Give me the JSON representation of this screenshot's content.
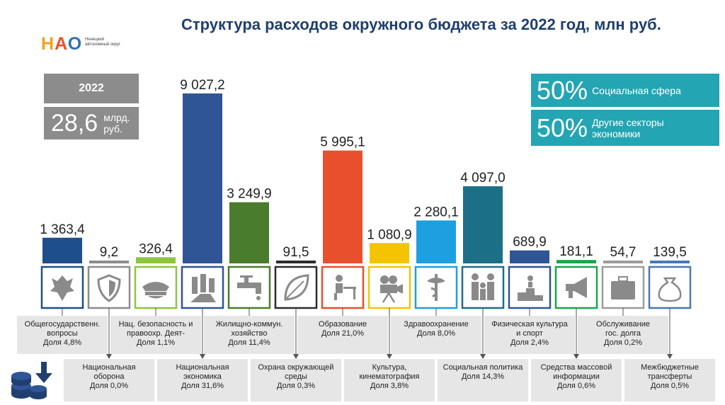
{
  "title": "Структура расходов окружного бюджета за 2022 год, млн руб.",
  "logo": {
    "text": "НАО",
    "subtitle": "Ненецкий автономный округ"
  },
  "summary": {
    "year": "2022",
    "total_value": "28,6",
    "total_unit": "млрд. руб."
  },
  "percent_boxes": [
    {
      "value": "50%",
      "label": "Социальная сфера"
    },
    {
      "value": "50%",
      "label": "Другие секторы экономики"
    }
  ],
  "chart_data": {
    "type": "bar",
    "unit": "млн руб.",
    "categories": [
      "Общегосударственн. вопросы",
      "Национальная оборона",
      "Нац. безопасность и правоохр. Деят-",
      "Национальная экономика",
      "Жилищно-коммун. хозяйство",
      "Охрана окружающей среды",
      "Образование",
      "Культура, кинематография",
      "Здравоохранение",
      "Социальная политика",
      "Физическая культура и спорт",
      "Средства массовой информации",
      "Обслуживание гос. долга",
      "Межбюджетные трансферты"
    ],
    "values": [
      1363.4,
      9.2,
      326.4,
      9027.2,
      3249.9,
      91.5,
      5995.1,
      1080.9,
      2280.1,
      4097.0,
      689.9,
      181.1,
      54.7,
      139.5
    ],
    "value_labels": [
      "1 363,4",
      "9,2",
      "326,4",
      "9 027,2",
      "3 249,9",
      "91,5",
      "5 995,1",
      "1 080,9",
      "2 280,1",
      "4 097,0",
      "689,9",
      "181,1",
      "54,7",
      "139,5"
    ],
    "shares": [
      "Доля 4,8%",
      "Доля 0,0%",
      "Доля 1,1%",
      "Доля 31,6%",
      "Доля 11,4%",
      "Доля 0,3%",
      "Доля 21,0%",
      "Доля 3,8%",
      "Доля 8,0%",
      "Доля 14,3%",
      "Доля 2,4%",
      "Доля 0,6%",
      "Доля 0,2%",
      "Доля 0,5%"
    ],
    "colors": [
      "#1f4e8c",
      "#8c8c8c",
      "#8cc63f",
      "#2f5597",
      "#4a7c2e",
      "#2b2b2b",
      "#e8502d",
      "#f5c400",
      "#1e9fe0",
      "#1b6f86",
      "#2f5597",
      "#1aa64a",
      "#9c9c9c",
      "#4a78b8"
    ],
    "icons": [
      "emblem-icon",
      "shield-icon",
      "police-cap-icon",
      "road-buildings-icon",
      "water-tap-icon",
      "leaf-icon",
      "student-desk-icon",
      "film-camera-icon",
      "medicine-icon",
      "family-icon",
      "podium-icon",
      "megaphone-icon",
      "briefcase-icon",
      "money-bag-icon"
    ]
  },
  "captions_top": [
    {
      "lines": [
        "Общегосударственн.",
        "вопросы"
      ],
      "share": "Доля 4,8%"
    },
    {
      "lines": [
        "Нац. безопасность и",
        "правоохр. Деят-"
      ],
      "share": "Доля 1,1%"
    },
    {
      "lines": [
        "Жилищно-коммун.",
        "хозяйство"
      ],
      "share": "Доля 11,4%"
    },
    {
      "lines": [
        "Образование"
      ],
      "share": "Доля 21,0%"
    },
    {
      "lines": [
        "Здравоохранение"
      ],
      "share": "Доля 8,0%"
    },
    {
      "lines": [
        "Физическая культура",
        "и спорт"
      ],
      "share": "Доля 2,4%"
    },
    {
      "lines": [
        "Обслуживание",
        "гос. долга"
      ],
      "share": "Доля 0,2%"
    }
  ],
  "captions_bottom": [
    {
      "lines": [
        "Национальная",
        "оборона"
      ],
      "share": "Доля 0,0%"
    },
    {
      "lines": [
        "Национальная",
        "экономика"
      ],
      "share": "Доля 31,6%"
    },
    {
      "lines": [
        "Охрана окружающей",
        "среды"
      ],
      "share": "Доля 0,3%"
    },
    {
      "lines": [
        "Культура,",
        "кинематография"
      ],
      "share": "Доля 3,8%"
    },
    {
      "lines": [
        "Социальная политика"
      ],
      "share": "Доля 14,3%"
    },
    {
      "lines": [
        "Средства массовой",
        "информации"
      ],
      "share": "Доля 0,6%"
    },
    {
      "lines": [
        "Межбюджетные",
        "трансферты"
      ],
      "share": "Доля 0,5%"
    }
  ]
}
